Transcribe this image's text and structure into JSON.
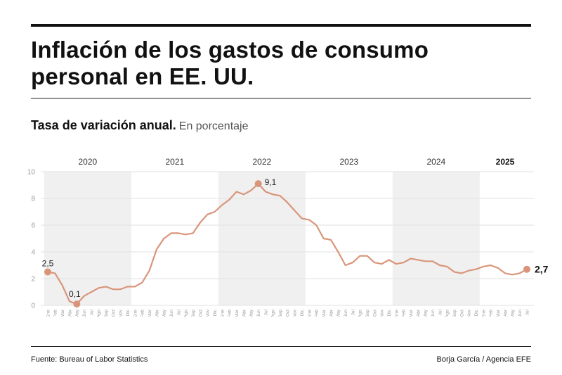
{
  "header": {
    "title": "Inflación de los gastos de consumo personal en EE. UU.",
    "subtitle_main": "Tasa de variación anual.",
    "subtitle_unit": "En porcentaje"
  },
  "footer": {
    "source": "Fuente: Bureau of Labor Statistics",
    "credit": "Borja García / Agencia EFE"
  },
  "colors": {
    "line": "#d9957a",
    "band": "#f0f0f0",
    "grid": "#e2e2e2"
  },
  "chart_data": {
    "type": "line",
    "ylim": [
      0,
      10
    ],
    "yticks": [
      0,
      2,
      4,
      6,
      8,
      10
    ],
    "grid": true,
    "years": [
      {
        "label": "2020",
        "bold": false
      },
      {
        "label": "2021",
        "bold": false
      },
      {
        "label": "2022",
        "bold": false
      },
      {
        "label": "2023",
        "bold": false
      },
      {
        "label": "2024",
        "bold": false
      },
      {
        "label": "2025",
        "bold": true
      }
    ],
    "month_labels": [
      "Ene",
      "Feb",
      "Mar",
      "Abr",
      "May",
      "Jun",
      "Jul",
      "Ago",
      "Sep",
      "Oct",
      "Nov",
      "Dic"
    ],
    "series": [
      {
        "values": [
          2.5,
          2.4,
          1.5,
          0.3,
          0.1,
          0.7,
          1.0,
          1.3,
          1.4,
          1.2,
          1.2,
          1.4,
          1.4,
          1.7,
          2.6,
          4.2,
          5.0,
          5.4,
          5.4,
          5.3,
          5.4,
          6.2,
          6.8,
          7.0,
          7.5,
          7.9,
          8.5,
          8.3,
          8.6,
          9.1,
          8.5,
          8.3,
          8.2,
          7.7,
          7.1,
          6.5,
          6.4,
          6.0,
          5.0,
          4.9,
          4.0,
          3.0,
          3.2,
          3.7,
          3.7,
          3.2,
          3.1,
          3.4,
          3.1,
          3.2,
          3.5,
          3.4,
          3.3,
          3.3,
          3.0,
          2.9,
          2.5,
          2.4,
          2.6,
          2.7,
          2.9,
          3.0,
          2.8,
          2.4,
          2.3,
          2.4,
          2.7
        ]
      }
    ],
    "annotations": [
      {
        "index": 0,
        "label": "2,5",
        "big": false
      },
      {
        "index": 4,
        "label": "0,1",
        "big": false
      },
      {
        "index": 29,
        "label": "9,1",
        "big": false
      },
      {
        "index": 66,
        "label": "2,7",
        "big": true
      }
    ]
  }
}
